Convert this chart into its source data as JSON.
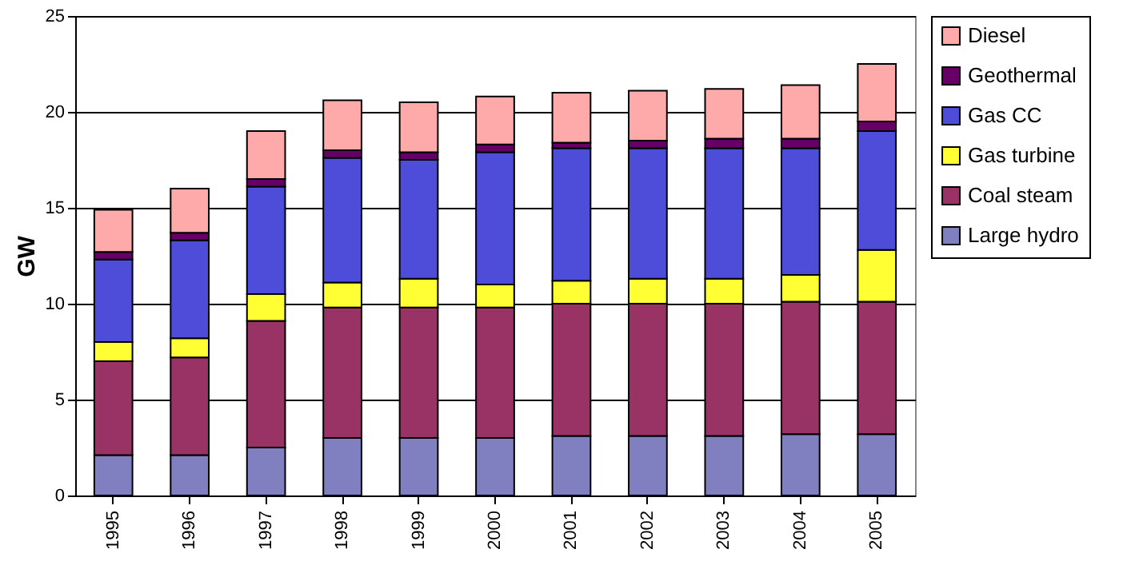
{
  "chart_data": {
    "type": "bar",
    "stacked": true,
    "ylabel": "GW",
    "categories": [
      "1995",
      "1996",
      "1997",
      "1998",
      "1999",
      "2000",
      "2001",
      "2002",
      "2003",
      "2004",
      "2005"
    ],
    "series": [
      {
        "name": "Large hydro",
        "color": "#8080c0",
        "values": [
          2.1,
          2.1,
          2.5,
          3.0,
          3.0,
          3.0,
          3.1,
          3.1,
          3.1,
          3.2,
          3.2
        ]
      },
      {
        "name": "Coal steam",
        "color": "#993366",
        "values": [
          4.9,
          5.1,
          6.6,
          6.8,
          6.8,
          6.8,
          6.9,
          6.9,
          6.9,
          6.9,
          6.9
        ]
      },
      {
        "name": "Gas turbine",
        "color": "#ffff33",
        "values": [
          1.0,
          1.0,
          1.4,
          1.3,
          1.5,
          1.2,
          1.2,
          1.3,
          1.3,
          1.4,
          2.7
        ]
      },
      {
        "name": "Gas CC",
        "color": "#4d4dd9",
        "values": [
          4.3,
          5.1,
          5.6,
          6.5,
          6.2,
          6.9,
          6.9,
          6.8,
          6.8,
          6.6,
          6.2
        ]
      },
      {
        "name": "Geothermal",
        "color": "#660066",
        "values": [
          0.4,
          0.4,
          0.4,
          0.4,
          0.4,
          0.4,
          0.3,
          0.4,
          0.5,
          0.5,
          0.5
        ]
      },
      {
        "name": "Diesel",
        "color": "#ffaaaa",
        "values": [
          2.2,
          2.3,
          2.5,
          2.6,
          2.6,
          2.5,
          2.6,
          2.6,
          2.6,
          2.8,
          3.0
        ]
      }
    ],
    "ylim": [
      0,
      25
    ],
    "yticks": [
      0,
      5,
      10,
      15,
      20,
      25
    ],
    "grid": "y",
    "legend": "right"
  }
}
